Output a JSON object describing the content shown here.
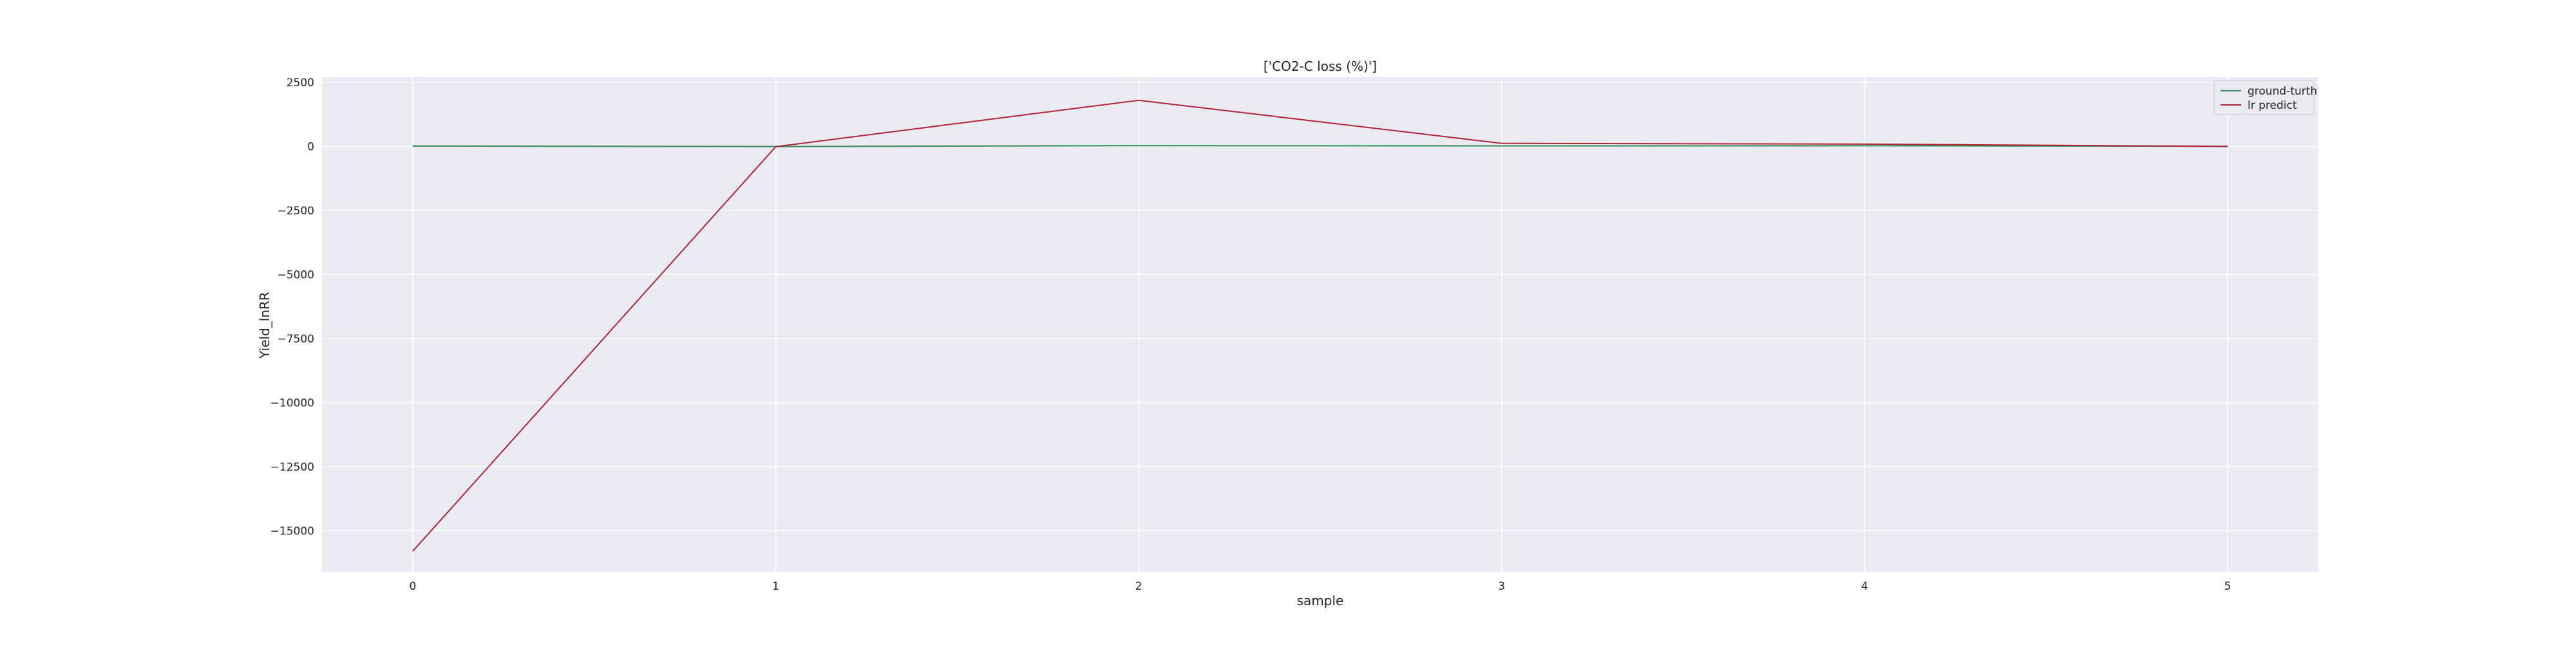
{
  "chart_data": {
    "type": "line",
    "title": "['CO2-C loss (%)']",
    "xlabel": "sample",
    "ylabel": "Yield_lnRR",
    "x": [
      0,
      1,
      2,
      3,
      4,
      5
    ],
    "x_ticks": [
      "0",
      "1",
      "2",
      "3",
      "4",
      "5"
    ],
    "y_ticks": [
      2500,
      0,
      -2500,
      -5000,
      -7500,
      -10000,
      -12500,
      -15000
    ],
    "y_tick_labels": [
      "2500",
      "0",
      "−2500",
      "−5000",
      "−7500",
      "−10000",
      "−12500",
      "−15000"
    ],
    "xlim": [
      -0.25,
      5.25
    ],
    "ylim": [
      -16600,
      2700
    ],
    "grid": true,
    "legend_position": "top-right",
    "series": [
      {
        "name": "ground-turth",
        "color": "#2e8b57",
        "values": [
          15,
          -5,
          30,
          20,
          25,
          5
        ]
      },
      {
        "name": "lr predict",
        "color": "#b22234",
        "values": [
          -15800,
          -10,
          1800,
          120,
          90,
          0
        ]
      }
    ]
  }
}
